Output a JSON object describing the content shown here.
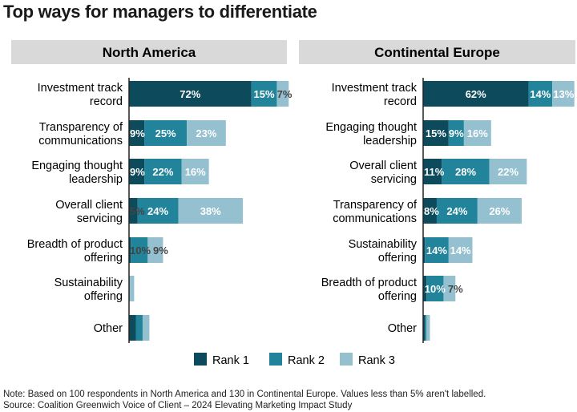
{
  "title": "Top ways for managers to differentiate",
  "note": "Note: Based on 100 respondents in North America and 130 in Continental Europe. Values less than 5% aren't labelled.",
  "source": "Source: Coalition Greenwich Voice of Client – 2024 Elevating Marketing Impact Study",
  "chart_data": [
    {
      "type": "bar",
      "orientation": "horizontal",
      "stacked": true,
      "title": "North America",
      "categories": [
        "Investment track record",
        "Transparency of communications",
        "Engaging thought leadership",
        "Overall client servicing",
        "Breadth of product offering",
        "Sustainability offering",
        "Other"
      ],
      "series": [
        {
          "name": "Rank 1",
          "values": [
            72,
            9,
            9,
            5,
            1,
            0,
            4
          ]
        },
        {
          "name": "Rank 2",
          "values": [
            15,
            25,
            22,
            24,
            10,
            0,
            4
          ]
        },
        {
          "name": "Rank 3",
          "values": [
            7,
            23,
            16,
            38,
            9,
            3,
            4
          ]
        }
      ]
    },
    {
      "type": "bar",
      "orientation": "horizontal",
      "stacked": true,
      "title": "Continental Europe",
      "categories": [
        "Investment track record",
        "Engaging thought leadership",
        "Overall client servicing",
        "Transparency of communications",
        "Sustainability offering",
        "Breadth of product offering",
        "Other"
      ],
      "series": [
        {
          "name": "Rank 1",
          "values": [
            62,
            15,
            11,
            8,
            1,
            2,
            1
          ]
        },
        {
          "name": "Rank 2",
          "values": [
            14,
            9,
            28,
            24,
            14,
            10,
            1
          ]
        },
        {
          "name": "Rank 3",
          "values": [
            13,
            16,
            22,
            26,
            14,
            7,
            2
          ]
        }
      ]
    }
  ],
  "legend": [
    "Rank 1",
    "Rank 2",
    "Rank 3"
  ],
  "colors": [
    "#0c4a5c",
    "#22849a",
    "#95c0cf"
  ],
  "label_threshold": 5
}
